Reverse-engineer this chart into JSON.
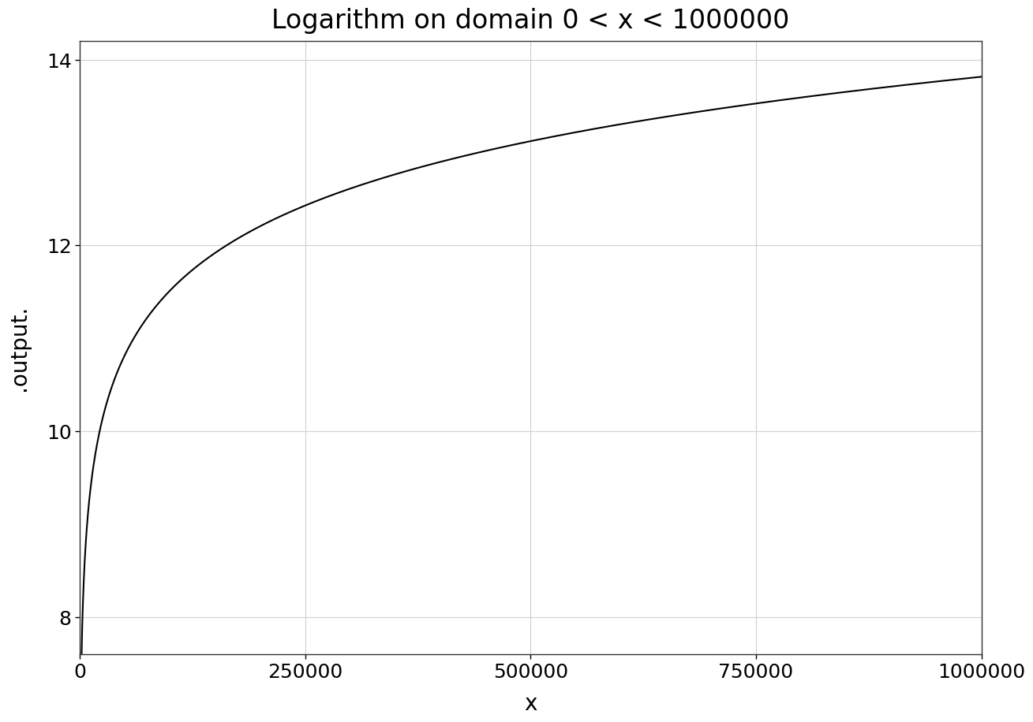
{
  "title": "Logarithm on domain 0 < x < 1000000",
  "xlabel": "x",
  "ylabel": ".output.",
  "x_start": 1,
  "x_end": 1000000,
  "xlim": [
    0,
    1000000
  ],
  "ylim": [
    7.6,
    14.2
  ],
  "yticks": [
    8,
    10,
    12,
    14
  ],
  "xticks": [
    0,
    250000,
    500000,
    750000,
    1000000
  ],
  "xtick_labels": [
    "0",
    "250000",
    "500000",
    "750000",
    "1000000"
  ],
  "line_color": "#000000",
  "line_width": 1.5,
  "background_color": "#ffffff",
  "grid_color": "#d0d0d0",
  "title_fontsize": 24,
  "label_fontsize": 20,
  "tick_fontsize": 18
}
